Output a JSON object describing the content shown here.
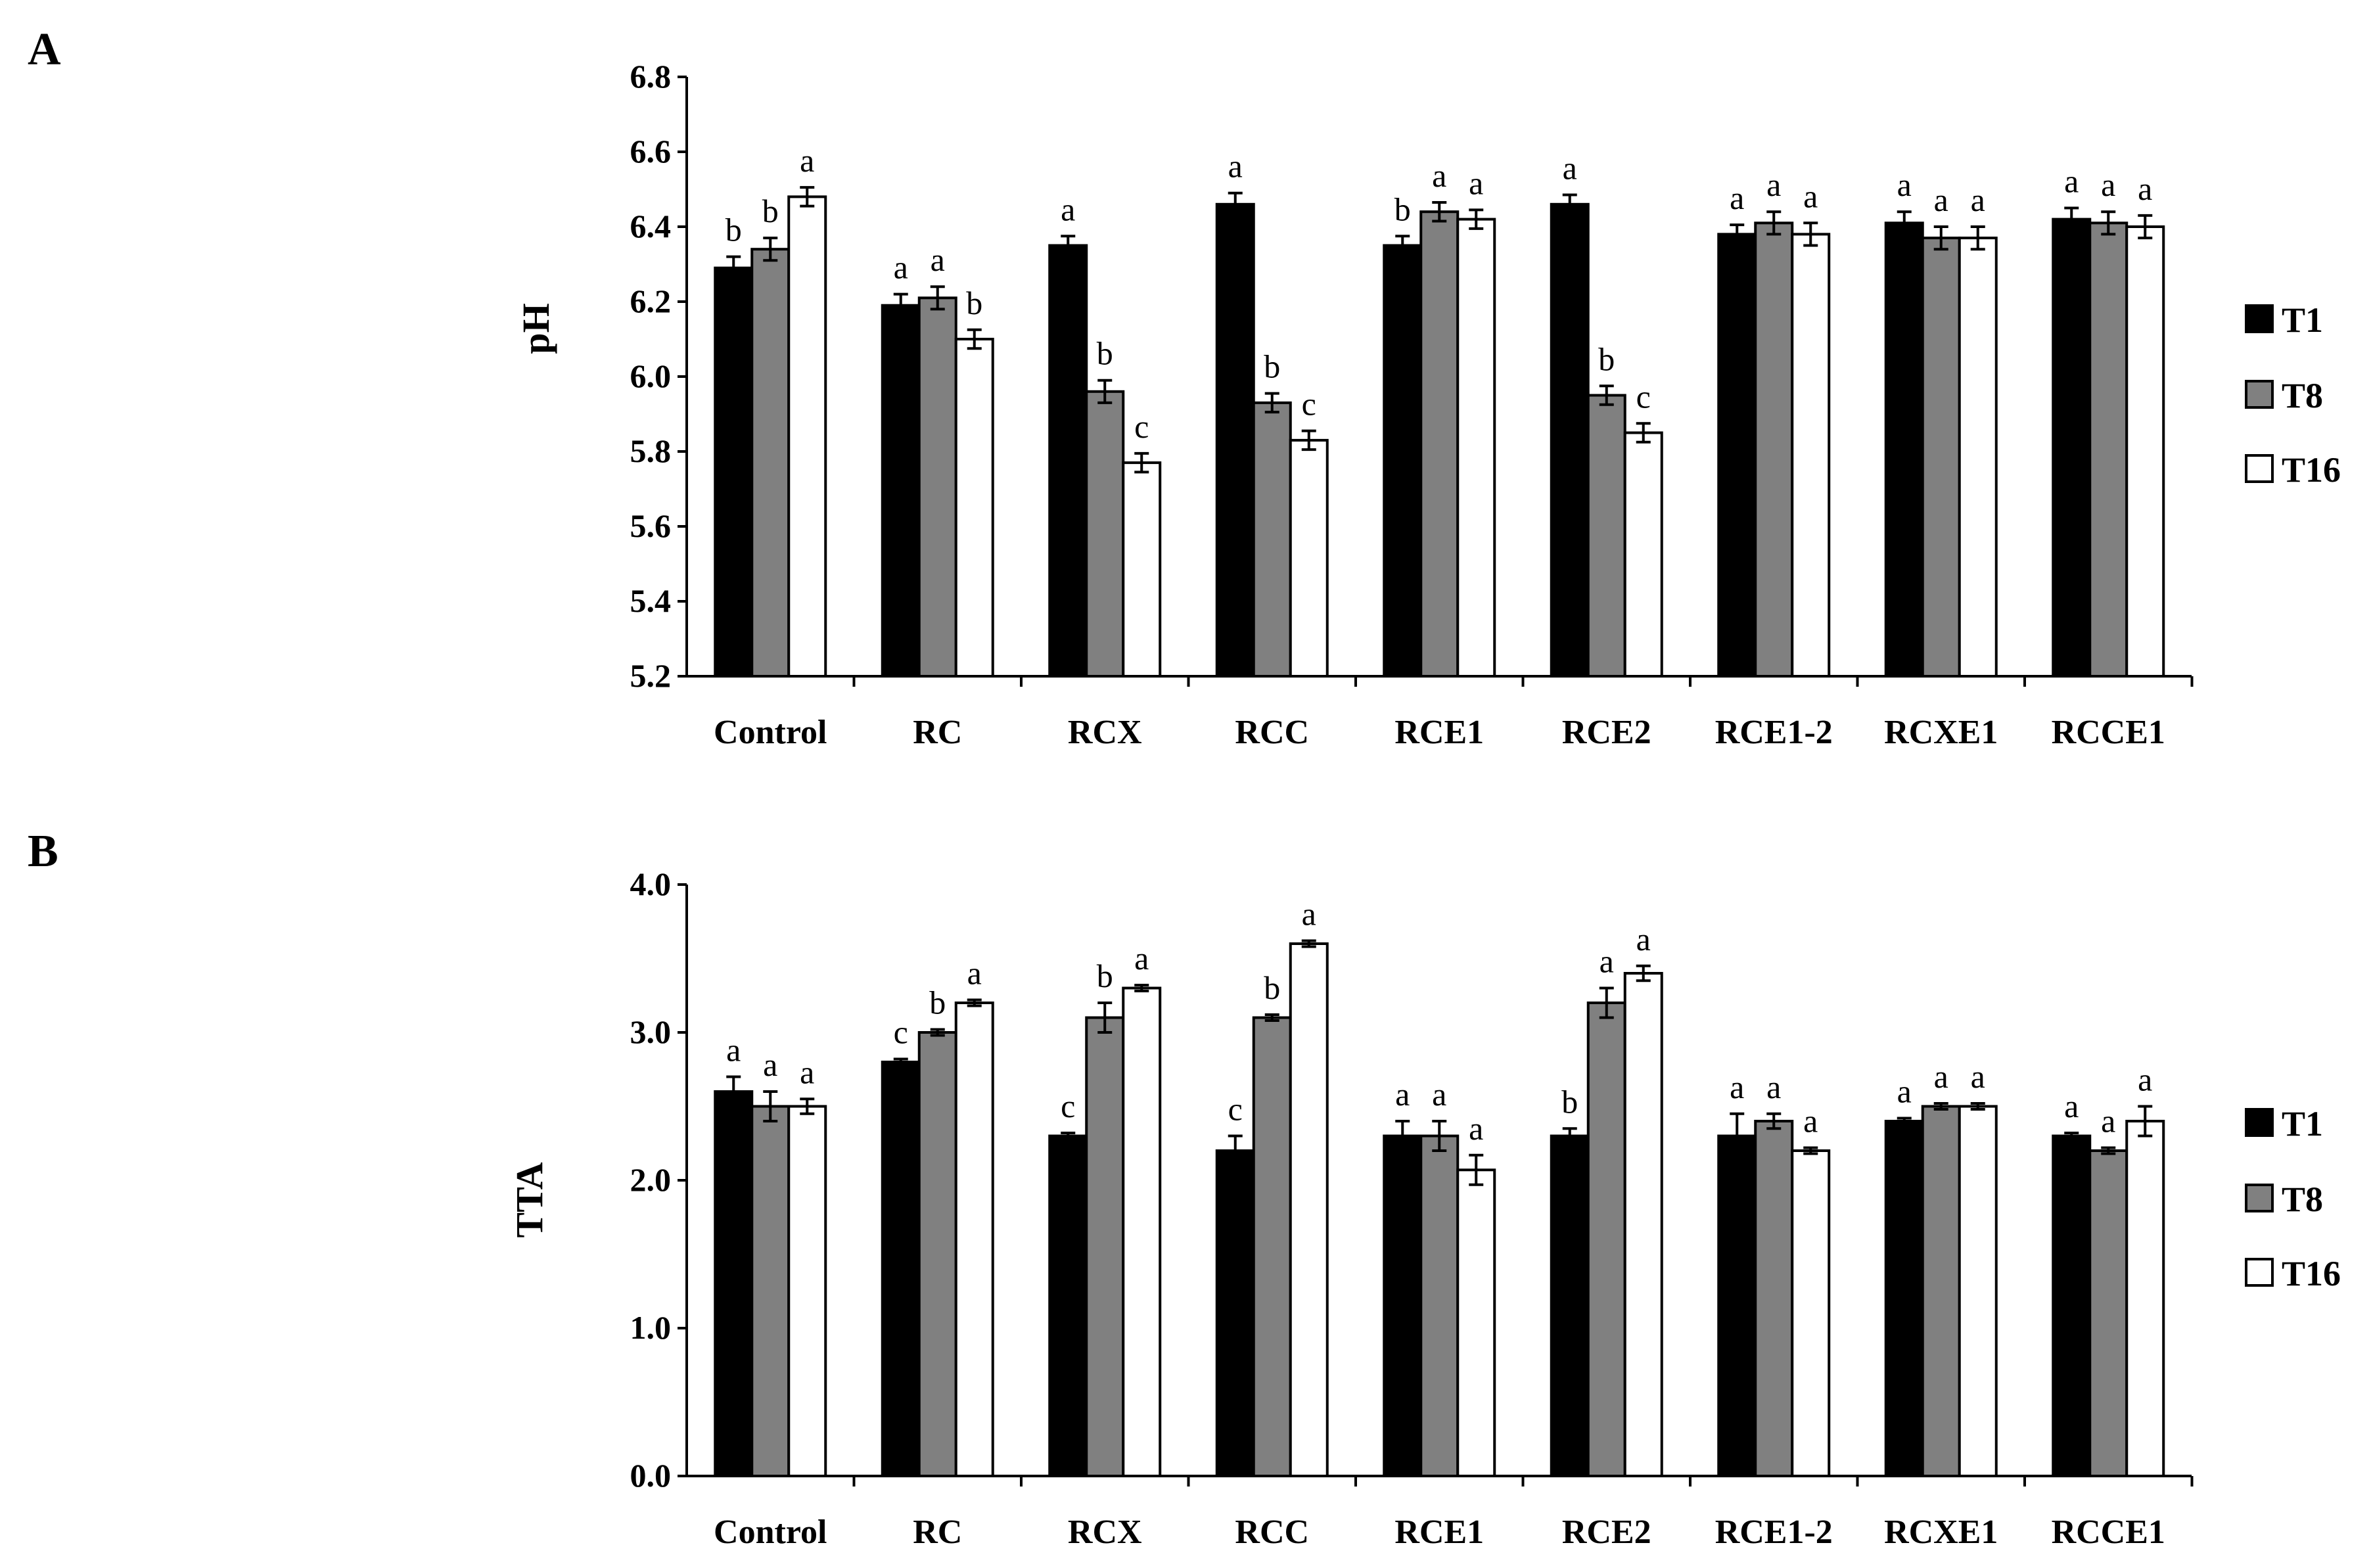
{
  "chart_data": [
    {
      "panel_label": "A",
      "type": "bar",
      "ylabel": "pH",
      "xlabel": "",
      "ylim": [
        5.2,
        6.8
      ],
      "yticks": [
        "5.2",
        "5.4",
        "5.6",
        "5.8",
        "6.0",
        "6.2",
        "6.4",
        "6.6",
        "6.8"
      ],
      "categories": [
        "Control",
        "RC",
        "RCX",
        "RCC",
        "RCE1",
        "RCE2",
        "RCE1-2",
        "RCXE1",
        "RCCE1"
      ],
      "series": [
        {
          "name": "T1",
          "values": [
            6.29,
            6.19,
            6.35,
            6.46,
            6.35,
            6.46,
            6.38,
            6.41,
            6.42
          ],
          "errors": [
            0.03,
            0.03,
            0.025,
            0.03,
            0.025,
            0.025,
            0.025,
            0.03,
            0.03
          ],
          "letters": [
            "b",
            "a",
            "a",
            "a",
            "b",
            "a",
            "a",
            "a",
            "a"
          ]
        },
        {
          "name": "T8",
          "values": [
            6.34,
            6.21,
            5.96,
            5.93,
            6.44,
            5.95,
            6.41,
            6.37,
            6.41
          ],
          "errors": [
            0.03,
            0.03,
            0.03,
            0.025,
            0.025,
            0.025,
            0.03,
            0.03,
            0.03
          ],
          "letters": [
            "b",
            "a",
            "b",
            "b",
            "a",
            "b",
            "a",
            "a",
            "a"
          ]
        },
        {
          "name": "T16",
          "values": [
            6.48,
            6.1,
            5.77,
            5.83,
            6.42,
            5.85,
            6.38,
            6.37,
            6.4
          ],
          "errors": [
            0.025,
            0.025,
            0.025,
            0.025,
            0.025,
            0.025,
            0.03,
            0.03,
            0.03
          ],
          "letters": [
            "a",
            "b",
            "c",
            "c",
            "a",
            "c",
            "a",
            "a",
            "a"
          ]
        }
      ],
      "legend": [
        "T1",
        "T8",
        "T16"
      ],
      "legend_position": "right",
      "grid": false
    },
    {
      "panel_label": "B",
      "type": "bar",
      "ylabel": "TTA",
      "xlabel": "",
      "ylim": [
        0.0,
        4.0
      ],
      "yticks": [
        "0.0",
        "1.0",
        "2.0",
        "3.0",
        "4.0"
      ],
      "categories": [
        "Control",
        "RC",
        "RCX",
        "RCC",
        "RCE1",
        "RCE2",
        "RCE1-2",
        "RCXE1",
        "RCCE1"
      ],
      "series": [
        {
          "name": "T1",
          "values": [
            2.6,
            2.8,
            2.3,
            2.2,
            2.3,
            2.3,
            2.3,
            2.4,
            2.3
          ],
          "errors": [
            0.1,
            0.02,
            0.02,
            0.1,
            0.1,
            0.05,
            0.15,
            0.02,
            0.02
          ],
          "letters": [
            "a",
            "c",
            "c",
            "c",
            "a",
            "b",
            "a",
            "a",
            "a"
          ]
        },
        {
          "name": "T8",
          "values": [
            2.5,
            3.0,
            3.1,
            3.1,
            2.3,
            3.2,
            2.4,
            2.5,
            2.2
          ],
          "errors": [
            0.1,
            0.02,
            0.1,
            0.02,
            0.1,
            0.1,
            0.05,
            0.02,
            0.02
          ],
          "letters": [
            "a",
            "b",
            "b",
            "b",
            "a",
            "a",
            "a",
            "a",
            "a"
          ]
        },
        {
          "name": "T16",
          "values": [
            2.5,
            3.2,
            3.3,
            3.6,
            2.07,
            3.4,
            2.2,
            2.5,
            2.4
          ],
          "errors": [
            0.05,
            0.02,
            0.02,
            0.02,
            0.1,
            0.05,
            0.02,
            0.02,
            0.1
          ],
          "letters": [
            "a",
            "a",
            "a",
            "a",
            "a",
            "a",
            "a",
            "a",
            "a"
          ]
        }
      ],
      "legend": [
        "T1",
        "T8",
        "T16"
      ],
      "legend_position": "right",
      "grid": false
    }
  ],
  "colors": {
    "T1": "#000000",
    "T8": "#808080",
    "T16": "#ffffff",
    "axis": "#000000",
    "background": "#ffffff"
  }
}
